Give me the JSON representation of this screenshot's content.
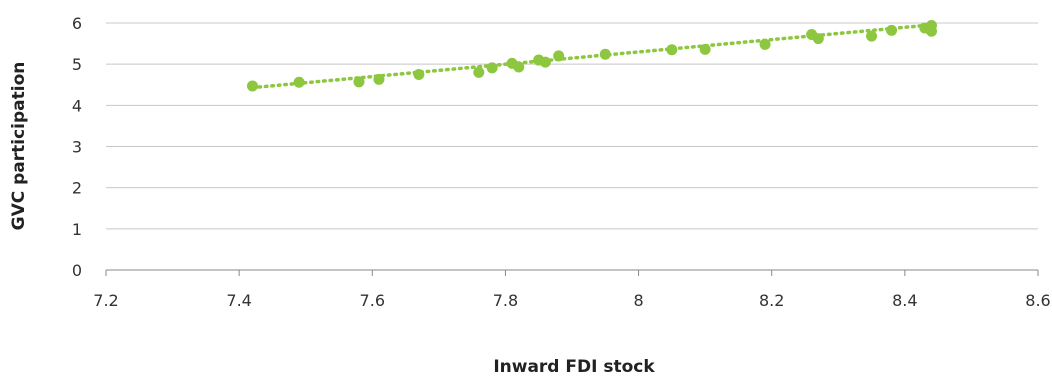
{
  "chart_data": {
    "type": "scatter",
    "xlabel": "Inward FDI stock",
    "ylabel": "GVC participation",
    "xlim": [
      7.2,
      8.6
    ],
    "ylim": [
      0,
      6
    ],
    "x_ticks": [
      "7.2",
      "7.4",
      "7.6",
      "7.8",
      "8",
      "8.2",
      "8.4",
      "8.6"
    ],
    "y_ticks": [
      "0",
      "1",
      "2",
      "3",
      "4",
      "5",
      "6"
    ],
    "grid": "horizontal",
    "colors": {
      "points": "#8dc63f",
      "trendline": "#8dc63f",
      "grid": "#c8c8c8",
      "axis": "#888888"
    },
    "points": [
      [
        7.42,
        4.47
      ],
      [
        7.49,
        4.56
      ],
      [
        7.58,
        4.57
      ],
      [
        7.61,
        4.63
      ],
      [
        7.67,
        4.75
      ],
      [
        7.76,
        4.8
      ],
      [
        7.78,
        4.91
      ],
      [
        7.81,
        5.02
      ],
      [
        7.82,
        4.93
      ],
      [
        7.85,
        5.1
      ],
      [
        7.86,
        5.05
      ],
      [
        7.88,
        5.2
      ],
      [
        7.95,
        5.24
      ],
      [
        8.05,
        5.35
      ],
      [
        8.1,
        5.36
      ],
      [
        8.19,
        5.48
      ],
      [
        8.26,
        5.72
      ],
      [
        8.27,
        5.62
      ],
      [
        8.35,
        5.68
      ],
      [
        8.38,
        5.82
      ],
      [
        8.43,
        5.88
      ],
      [
        8.44,
        5.8
      ],
      [
        8.44,
        5.94
      ]
    ],
    "trendline": {
      "style": "dotted",
      "x": [
        7.42,
        8.45
      ],
      "y": [
        4.43,
        5.97
      ]
    }
  }
}
